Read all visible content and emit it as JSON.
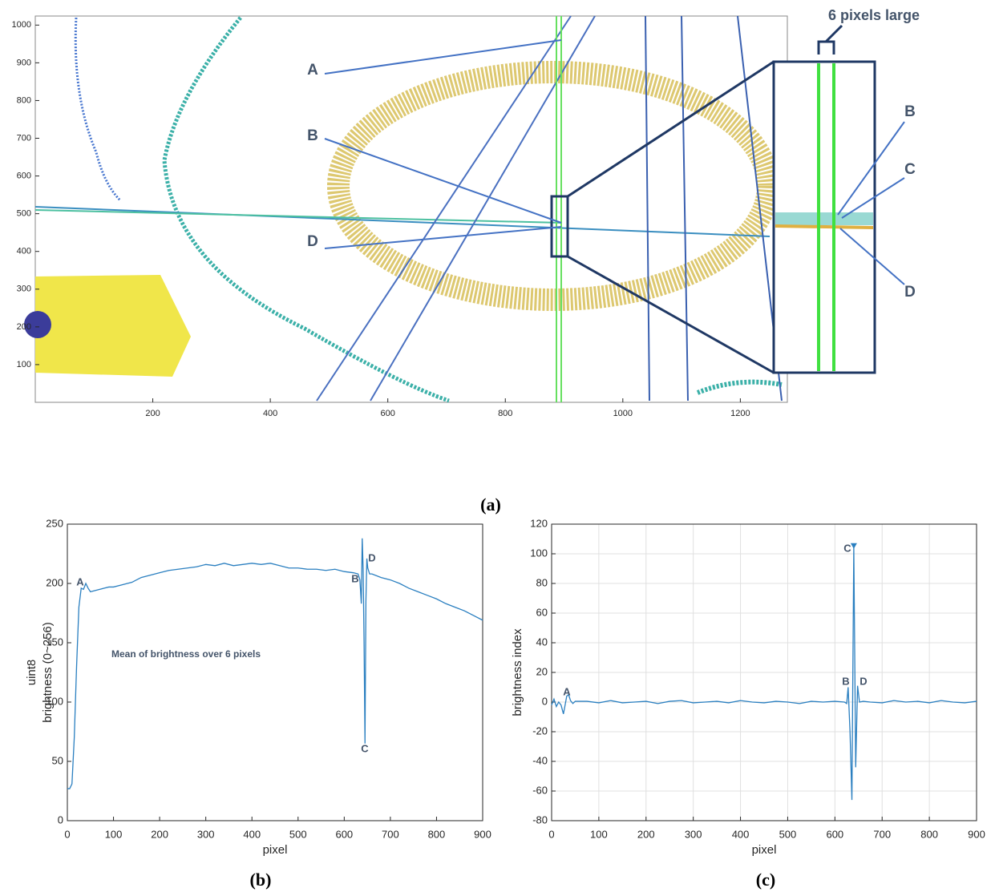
{
  "chart_data": [
    {
      "type": "image",
      "caption": "(a)",
      "xlim": [
        0,
        1280
      ],
      "ylim": [
        0,
        1024
      ],
      "xticks": [
        200,
        400,
        600,
        800,
        1000,
        1200
      ],
      "yticks": [
        100,
        200,
        300,
        400,
        500,
        600,
        700,
        800,
        900,
        1000
      ],
      "annotations": [
        "A",
        "B",
        "D"
      ],
      "inset_annotations": [
        "B",
        "C",
        "D"
      ],
      "inset_label": "6 pixels large"
    },
    {
      "type": "line",
      "caption": "(b)",
      "xlabel": "pixel",
      "ylabel": [
        "uint8",
        "brightness (0~256)"
      ],
      "xlim": [
        0,
        900
      ],
      "ylim": [
        0,
        250
      ],
      "xticks": [
        0,
        100,
        200,
        300,
        400,
        500,
        600,
        700,
        800,
        900
      ],
      "yticks": [
        0,
        50,
        100,
        150,
        200,
        250
      ],
      "grid": false,
      "peak_marker": false,
      "series": [
        {
          "color": "#2a7fc0",
          "x": [
            0,
            5,
            10,
            15,
            20,
            25,
            30,
            35,
            40,
            45,
            50,
            60,
            70,
            80,
            90,
            100,
            120,
            140,
            160,
            180,
            200,
            220,
            240,
            260,
            280,
            300,
            320,
            340,
            360,
            380,
            400,
            420,
            440,
            460,
            480,
            500,
            520,
            540,
            560,
            580,
            600,
            620,
            630,
            634,
            637,
            639,
            641,
            643,
            645,
            647,
            649,
            651,
            655,
            660,
            680,
            700,
            720,
            740,
            760,
            780,
            800,
            820,
            840,
            860,
            880,
            900
          ],
          "values": [
            27,
            27,
            31,
            70,
            130,
            180,
            196,
            195,
            200,
            196,
            193,
            194,
            195,
            196,
            197,
            197,
            199,
            201,
            205,
            207,
            209,
            211,
            212,
            213,
            214,
            216,
            215,
            217,
            215,
            216,
            217,
            216,
            217,
            215,
            213,
            213,
            212,
            212,
            211,
            212,
            210,
            209,
            208,
            203,
            183,
            238,
            212,
            150,
            65,
            185,
            221,
            213,
            208,
            208,
            205,
            203,
            200,
            196,
            193,
            190,
            187,
            183,
            180,
            177,
            173,
            169
          ]
        }
      ],
      "annotations": [
        "A",
        "B",
        "C",
        "D",
        "Mean of brightness over 6 pixels"
      ]
    },
    {
      "type": "line",
      "caption": "(c)",
      "xlabel": "pixel",
      "ylabel": [
        "brightness index"
      ],
      "xlim": [
        0,
        900
      ],
      "ylim": [
        -80,
        120
      ],
      "xticks": [
        0,
        100,
        200,
        300,
        400,
        500,
        600,
        700,
        800,
        900
      ],
      "yticks": [
        -80,
        -60,
        -40,
        -20,
        0,
        20,
        40,
        60,
        80,
        100,
        120
      ],
      "grid": true,
      "peak_marker": true,
      "series": [
        {
          "color": "#2a7fc0",
          "x": [
            0,
            5,
            10,
            15,
            20,
            25,
            28,
            32,
            36,
            40,
            45,
            50,
            75,
            100,
            125,
            150,
            175,
            200,
            225,
            250,
            275,
            300,
            325,
            350,
            375,
            400,
            425,
            450,
            475,
            500,
            525,
            550,
            575,
            600,
            620,
            625,
            628,
            632,
            636,
            640,
            644,
            648,
            652,
            660,
            675,
            700,
            725,
            750,
            775,
            800,
            825,
            850,
            875,
            900
          ],
          "values": [
            -2,
            2,
            -3,
            0,
            -2,
            -8,
            -3,
            4,
            5,
            1,
            -1,
            0.5,
            0.5,
            -0.5,
            1,
            -0.5,
            0,
            0.5,
            -1,
            0.5,
            1,
            -0.5,
            0,
            0.5,
            -0.5,
            1,
            0,
            -0.5,
            0.5,
            0,
            -1,
            0.5,
            0,
            0.5,
            0,
            -1,
            10,
            -20,
            -66,
            105,
            -44,
            11,
            0,
            0.5,
            0,
            -0.5,
            1,
            0,
            0.5,
            -0.5,
            1,
            0,
            -0.5,
            0.5
          ]
        }
      ],
      "annotations": [
        "A",
        "B",
        "C",
        "D"
      ]
    }
  ]
}
